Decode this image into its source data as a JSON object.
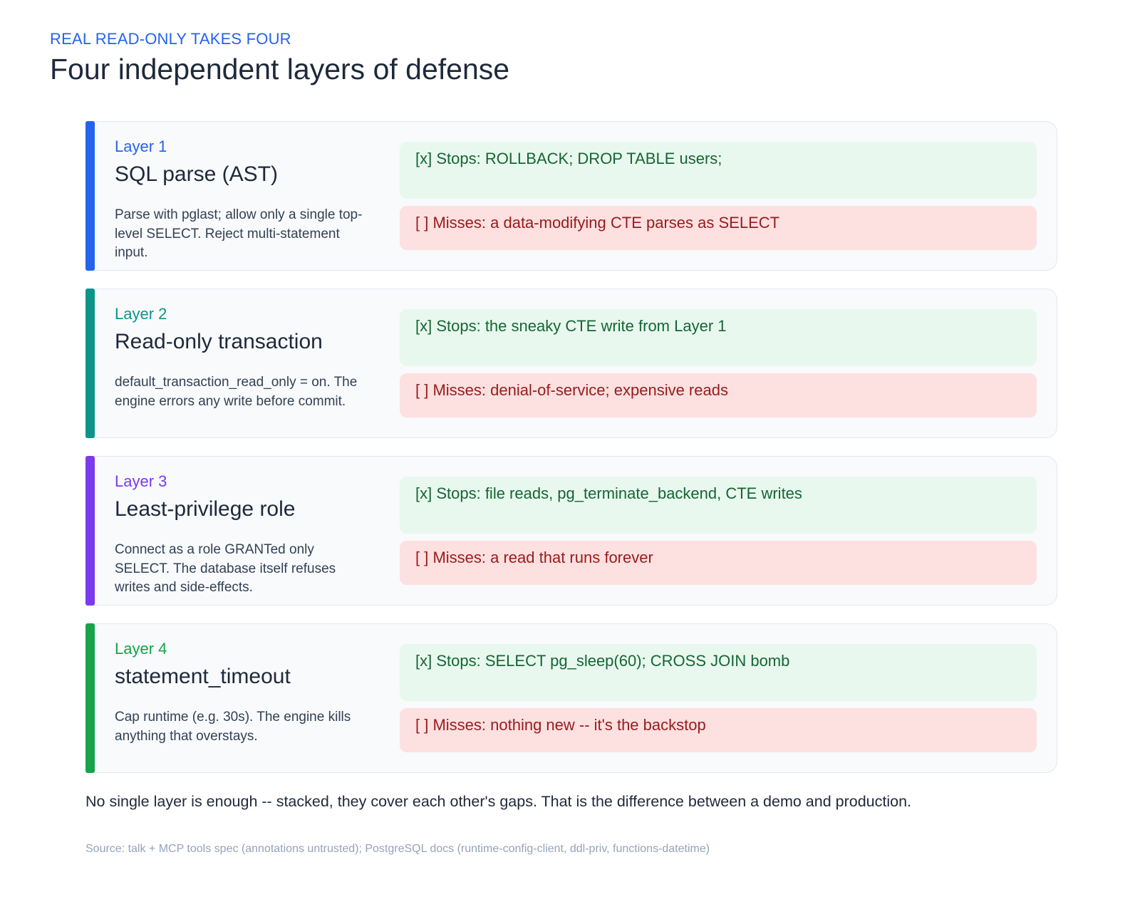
{
  "header": {
    "eyebrow": "REAL READ-ONLY TAKES FOUR",
    "title": "Four independent layers of defense"
  },
  "layers": [
    {
      "label": "Layer 1",
      "name": "SQL parse (AST)",
      "description": "Parse with pglast; allow only a single top-level SELECT. Reject multi-statement input.",
      "stops": "[x] Stops: ROLLBACK; DROP TABLE users;",
      "misses": "[ ] Misses: a data-modifying CTE parses as SELECT",
      "color": "#2563eb"
    },
    {
      "label": "Layer 2",
      "name": "Read-only transaction",
      "description": "default_transaction_read_only = on. The engine errors any write before commit.",
      "stops": "[x] Stops: the sneaky CTE write from Layer 1",
      "misses": "[ ] Misses: denial-of-service; expensive reads",
      "color": "#0d9488"
    },
    {
      "label": "Layer 3",
      "name": "Least-privilege role",
      "description": "Connect as a role GRANTed only SELECT. The database itself refuses writes and side-effects.",
      "stops": "[x] Stops: file reads, pg_terminate_backend, CTE writes",
      "misses": "[ ] Misses: a read that runs forever",
      "color": "#7c3aed"
    },
    {
      "label": "Layer 4",
      "name": "statement_timeout",
      "description": "Cap runtime (e.g. 30s). The engine kills anything that overstays.",
      "stops": "[x] Stops: SELECT pg_sleep(60); CROSS JOIN bomb",
      "misses": "[ ] Misses: nothing new -- it's the backstop",
      "color": "#16a34a"
    }
  ],
  "footer": {
    "summary": "No single layer is enough -- stacked, they cover each other's gaps. That is the difference between a demo and production.",
    "source": "Source: talk + MCP tools spec (annotations untrusted); PostgreSQL docs (runtime-config-client, ddl-priv, functions-datetime)"
  }
}
